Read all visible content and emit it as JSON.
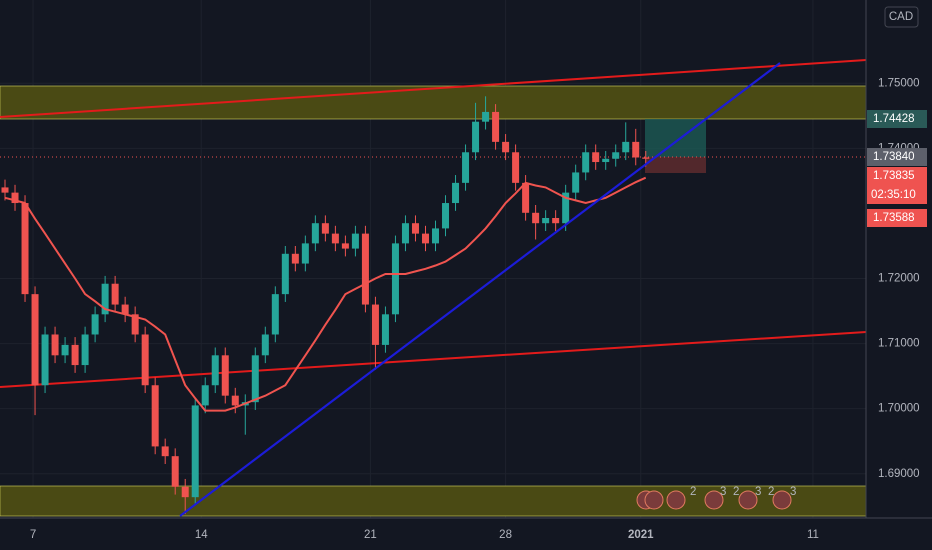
{
  "chart_data": {
    "type": "candlestick",
    "categories": [
      null,
      null,
      null,
      null,
      null,
      null,
      null,
      null,
      null,
      null,
      null,
      null,
      null,
      null,
      null,
      null,
      null,
      null,
      null,
      null,
      null,
      null,
      null,
      null,
      null,
      null,
      null,
      null,
      null,
      null,
      null,
      null,
      null,
      null,
      null,
      null,
      null,
      null,
      null,
      null,
      null,
      null,
      null,
      null,
      null,
      null,
      null,
      null,
      null,
      null,
      null,
      null,
      null,
      null,
      null,
      null,
      null,
      null,
      null,
      null,
      null,
      null,
      null,
      null,
      null
    ],
    "open": [
      1.734,
      1.7332,
      1.7316,
      1.7176,
      1.7036,
      1.7114,
      1.7082,
      1.7098,
      1.7067,
      1.7114,
      1.7145,
      1.7192,
      1.716,
      1.7145,
      1.7114,
      1.7036,
      1.6942,
      1.6927,
      1.688,
      1.6864,
      1.7005,
      1.7036,
      1.7082,
      1.702,
      1.7005,
      1.701,
      1.7082,
      1.7114,
      1.7176,
      1.7238,
      1.7223,
      1.7254,
      1.7285,
      1.7269,
      1.7254,
      1.7246,
      1.7269,
      1.716,
      1.7098,
      1.7145,
      1.7254,
      1.7285,
      1.7269,
      1.7254,
      1.7277,
      1.7316,
      1.7347,
      1.7394,
      1.7441,
      1.7456,
      1.741,
      1.7394,
      1.7347,
      1.7301,
      1.7285,
      1.7293,
      1.7285,
      1.7332,
      1.7363,
      1.7394,
      1.7379,
      1.7384,
      1.7394,
      1.741,
      1.7386
    ],
    "high": [
      1.7352,
      1.7344,
      1.7328,
      1.7188,
      1.7126,
      1.7126,
      1.711,
      1.711,
      1.7126,
      1.7157,
      1.7204,
      1.7204,
      1.7172,
      1.7157,
      1.7126,
      1.7048,
      1.6954,
      1.6939,
      1.6892,
      1.7017,
      1.7048,
      1.7094,
      1.7094,
      1.7032,
      1.7022,
      1.7094,
      1.7126,
      1.7188,
      1.725,
      1.725,
      1.7266,
      1.7297,
      1.7297,
      1.7281,
      1.7266,
      1.7281,
      1.7281,
      1.7172,
      1.7157,
      1.7266,
      1.7297,
      1.7297,
      1.7281,
      1.7289,
      1.7328,
      1.7359,
      1.7406,
      1.747,
      1.748,
      1.7468,
      1.7422,
      1.7406,
      1.7359,
      1.7313,
      1.7305,
      1.7305,
      1.7344,
      1.7375,
      1.7406,
      1.7406,
      1.7396,
      1.7406,
      1.744,
      1.743,
      1.7396
    ],
    "low": [
      1.732,
      1.7304,
      1.7164,
      1.699,
      1.7024,
      1.707,
      1.707,
      1.7055,
      1.7055,
      1.7102,
      1.7133,
      1.7148,
      1.7133,
      1.7102,
      1.7024,
      1.693,
      1.6915,
      1.6868,
      1.6838,
      1.6852,
      1.6993,
      1.7024,
      1.7008,
      1.6993,
      1.696,
      1.6998,
      1.707,
      1.7102,
      1.7164,
      1.7211,
      1.7211,
      1.7242,
      1.7257,
      1.7242,
      1.7234,
      1.7234,
      1.7148,
      1.706,
      1.7086,
      1.7133,
      1.7242,
      1.7257,
      1.7242,
      1.7242,
      1.7265,
      1.7304,
      1.7335,
      1.7382,
      1.7429,
      1.7398,
      1.7382,
      1.7335,
      1.7289,
      1.726,
      1.7273,
      1.7273,
      1.7273,
      1.732,
      1.7351,
      1.7367,
      1.7367,
      1.7372,
      1.7382,
      1.7374,
      1.7372
    ],
    "close": [
      1.7332,
      1.7316,
      1.7176,
      1.7036,
      1.7114,
      1.7082,
      1.7098,
      1.7067,
      1.7114,
      1.7145,
      1.7192,
      1.716,
      1.7145,
      1.7114,
      1.7036,
      1.6942,
      1.6927,
      1.688,
      1.6864,
      1.7005,
      1.7036,
      1.7082,
      1.702,
      1.7005,
      1.701,
      1.7082,
      1.7114,
      1.7176,
      1.7238,
      1.7223,
      1.7254,
      1.7285,
      1.7269,
      1.7254,
      1.7246,
      1.7269,
      1.716,
      1.7098,
      1.7145,
      1.7254,
      1.7285,
      1.7269,
      1.7254,
      1.7277,
      1.7316,
      1.7347,
      1.7394,
      1.7441,
      1.7456,
      1.741,
      1.7394,
      1.7347,
      1.7301,
      1.7285,
      1.7293,
      1.7285,
      1.7332,
      1.7363,
      1.7394,
      1.7379,
      1.7384,
      1.7394,
      1.741,
      1.7386,
      1.7384
    ],
    "up_color": "#26a69a",
    "down_color": "#ef5350",
    "ma": {
      "color": "#f0544f",
      "values": [
        1.7324,
        1.732,
        1.7316,
        1.7292,
        1.7269,
        1.7246,
        1.7223,
        1.72,
        1.7176,
        1.7165,
        1.7153,
        1.7149,
        1.7145,
        1.7141,
        1.7137,
        1.7126,
        1.7114,
        1.7075,
        1.7036,
        1.7016,
        1.6997,
        1.6997,
        1.6997,
        1.7002,
        1.7008,
        1.7014,
        1.702,
        1.7028,
        1.7036,
        1.7059,
        1.7082,
        1.7105,
        1.7129,
        1.7152,
        1.7176,
        1.7184,
        1.7192,
        1.72,
        1.7207,
        1.7207,
        1.7207,
        1.7211,
        1.7215,
        1.722,
        1.7226,
        1.7236,
        1.7246,
        1.7261,
        1.7277,
        1.7296,
        1.7316,
        1.7331,
        1.7347,
        1.7343,
        1.734,
        1.7332,
        1.7324,
        1.732,
        1.7316,
        1.732,
        1.7324,
        1.7332,
        1.734,
        1.7348,
        1.7355
      ]
    },
    "xlim": [
      -0.5,
      86
    ],
    "xticks": [
      {
        "value": 2.8,
        "label": "7"
      },
      {
        "value": 19.6,
        "label": "14"
      },
      {
        "value": 36.5,
        "label": "21"
      },
      {
        "value": 50,
        "label": "28"
      },
      {
        "value": 63.5,
        "label": "2021"
      },
      {
        "value": 80.7,
        "label": "11"
      }
    ],
    "ylim": [
      1.6832,
      1.7628
    ],
    "yticks": [
      {
        "value": 1.69,
        "label": "1.69000"
      },
      {
        "value": 1.7,
        "label": "1.70000"
      },
      {
        "value": 1.71,
        "label": "1.71000"
      },
      {
        "value": 1.72,
        "label": "1.72000"
      },
      {
        "value": 1.74,
        "label": "1.74000"
      },
      {
        "value": 1.75,
        "label": "1.75000"
      }
    ]
  },
  "overlay": {
    "currency": "CAD",
    "badges": [
      "1.74428",
      "1.73840",
      "1.73835",
      "02:35:10",
      "1.73588"
    ],
    "events": [
      "2",
      "3",
      "2",
      "3",
      "2",
      "3"
    ]
  }
}
